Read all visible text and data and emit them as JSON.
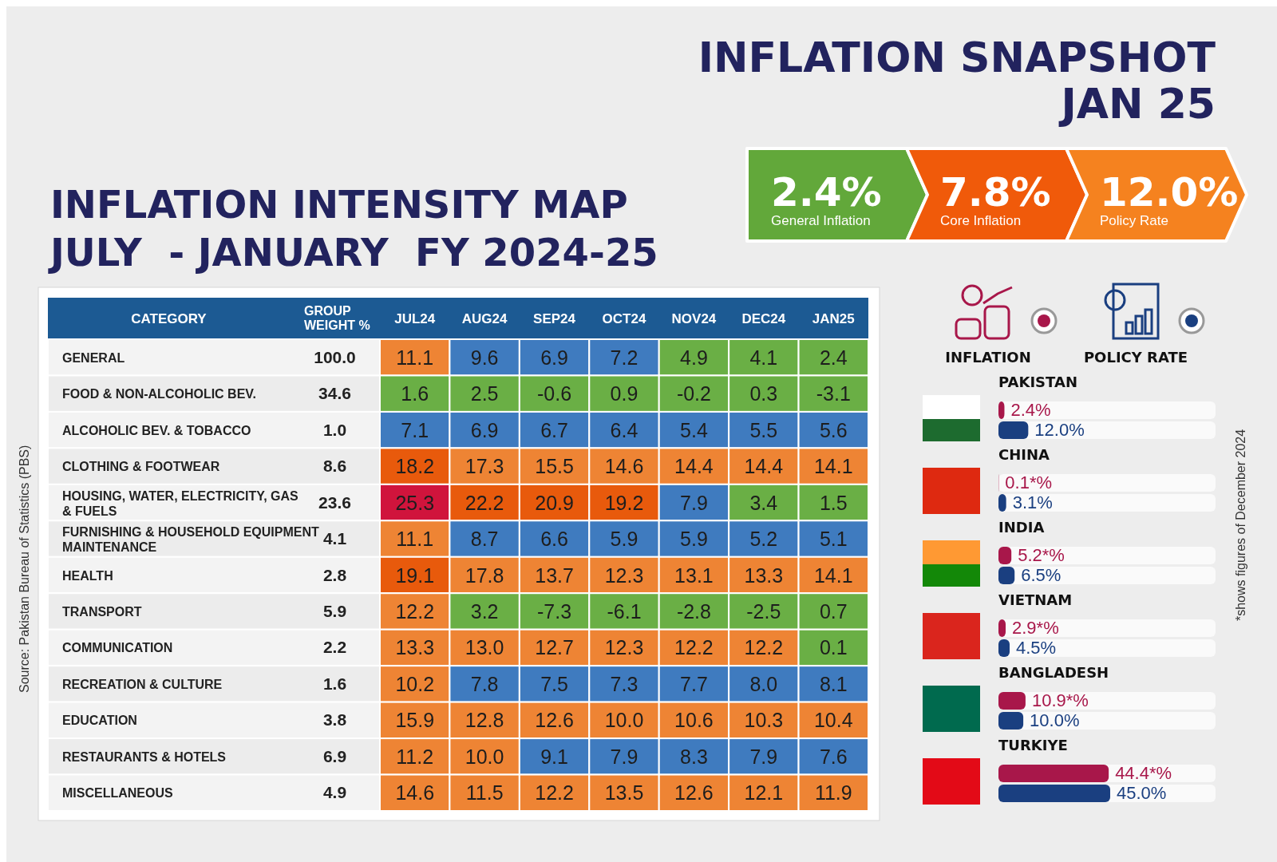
{
  "chart_data": [
    {
      "type": "heatmap",
      "data_labels": true,
      "title": "INFLATION INTENSITY MAP",
      "subtitle": "JULY  - JANUARY  FY 2024-25",
      "ylabel": "CATEGORY",
      "y2label": "GROUP WEIGHT %",
      "categories": [
        "JUL24",
        "AUG24",
        "SEP24",
        "OCT24",
        "NOV24",
        "DEC24",
        "JAN25"
      ],
      "y_categories": [
        "GENERAL",
        "FOOD & NON-ALCOHOLIC BEV.",
        "ALCOHOLIC BEV. & TOBACCO",
        "CLOTHING & FOOTWEAR",
        "HOUSING, WATER, ELECTRICITY, GAS & FUELS",
        "FURNISHING & HOUSEHOLD EQUIPMENT MAINTENANCE",
        "HEALTH",
        "TRANSPORT",
        "COMMUNICATION",
        "RECREATION & CULTURE",
        "EDUCATION",
        "RESTAURANTS & HOTELS",
        "MISCELLANEOUS"
      ],
      "y2_categories": [
        "100.0",
        "34.6",
        "1.0",
        "8.6",
        "23.6",
        "4.1",
        "2.8",
        "5.9",
        "2.2",
        "1.6",
        "3.8",
        "6.9",
        "4.9"
      ],
      "cells": [
        [
          11.1,
          9.6,
          6.9,
          7.2,
          4.9,
          4.1,
          2.4
        ],
        [
          1.6,
          2.5,
          -0.6,
          0.9,
          -0.2,
          0.3,
          -3.1
        ],
        [
          7.1,
          6.9,
          6.7,
          6.4,
          5.4,
          5.5,
          5.6
        ],
        [
          18.2,
          17.3,
          15.5,
          14.6,
          14.4,
          14.4,
          14.1
        ],
        [
          25.3,
          22.2,
          20.9,
          19.2,
          7.9,
          3.4,
          1.5
        ],
        [
          11.1,
          8.7,
          6.6,
          5.9,
          5.9,
          5.2,
          5.1
        ],
        [
          19.1,
          17.8,
          13.7,
          12.3,
          13.1,
          13.3,
          14.1
        ],
        [
          12.2,
          3.2,
          -7.3,
          -6.1,
          -2.8,
          -2.5,
          0.7
        ],
        [
          13.3,
          13.0,
          12.7,
          12.3,
          12.2,
          12.2,
          0.1
        ],
        [
          10.2,
          7.8,
          7.5,
          7.3,
          7.7,
          8.0,
          8.1
        ],
        [
          15.9,
          12.8,
          12.6,
          10.0,
          10.6,
          10.3,
          10.4
        ],
        [
          11.2,
          10.0,
          9.1,
          7.9,
          8.3,
          7.9,
          7.6
        ],
        [
          14.6,
          11.5,
          12.2,
          13.5,
          12.6,
          12.1,
          11.9
        ]
      ],
      "colors": [
        "#6aaf45",
        "#3f7bbf",
        "#ee8434",
        "#e85a0c",
        "#d0143c"
      ],
      "cell_labels": [
        [
          "11.1",
          "9.6",
          "6.9",
          "7.2",
          "4.9",
          "4.1",
          "2.4"
        ],
        [
          "1.6",
          "2.5",
          "-0.6",
          "0.9",
          "-0.2",
          "0.3",
          "-3.1"
        ],
        [
          "7.1",
          "6.9",
          "6.7",
          "6.4",
          "5.4",
          "5.5",
          "5.6"
        ],
        [
          "18.2",
          "17.3",
          "15.5",
          "14.6",
          "14.4",
          "14.4",
          "14.1"
        ],
        [
          "25.3",
          "22.2",
          "20.9",
          "19.2",
          "7.9",
          "3.4",
          "1.5"
        ],
        [
          "11.1",
          "8.7",
          "6.6",
          "5.9",
          "5.9",
          "5.2",
          "5.1"
        ],
        [
          "19.1",
          "17.8",
          "13.7",
          "12.3",
          "13.1",
          "13.3",
          "14.1"
        ],
        [
          "12.2",
          "3.2",
          "-7.3",
          "-6.1",
          "-2.8",
          "-2.5",
          "0.7"
        ],
        [
          "13.3",
          "13.0",
          "12.7",
          "12.3",
          "12.2",
          "12.2",
          "0.1"
        ],
        [
          "10.2",
          "7.8",
          "7.5",
          "7.3",
          "7.7",
          "8.0",
          "8.1"
        ],
        [
          "15.9",
          "12.8",
          "12.6",
          "10.0",
          "10.6",
          "10.3",
          "10.4"
        ],
        [
          "11.2",
          "10.0",
          "9.1",
          "7.9",
          "8.3",
          "7.9",
          "7.6"
        ],
        [
          "14.6",
          "11.5",
          "12.2",
          "13.5",
          "12.6",
          "12.1",
          "11.9"
        ]
      ],
      "annotations": [
        "Source: Pakistan Bureau of Statistics (PBS)"
      ]
    },
    {
      "type": "other",
      "title": "INFLATION SNAPSHOT JAN 25",
      "annotations": [
        "2.4%",
        "General Inflation",
        "7.8%",
        "Core Inflation",
        "12.0%",
        "Policy Rate"
      ],
      "colors": [
        "#62a83a",
        "#f05a0a",
        "#f5821f"
      ]
    },
    {
      "type": "bar",
      "orientation": "horizontal",
      "legend": "top",
      "categories": [
        "PAKISTAN",
        "CHINA",
        "INDIA",
        "VIETNAM",
        "BANGLADESH",
        "TURKIYE"
      ],
      "series": [
        {
          "name": "INFLATION",
          "color": "#a8174a",
          "values": [
            2.4,
            0.1,
            5.2,
            2.9,
            10.9,
            44.4
          ],
          "value_labels": [
            "2.4%",
            "0.1*%",
            "5.2*%",
            "2.9*%",
            "10.9*%",
            "44.4*%"
          ]
        },
        {
          "name": "POLICY RATE",
          "color": "#1a3f80",
          "values": [
            12.0,
            3.1,
            6.5,
            4.5,
            10.0,
            45.0
          ],
          "value_labels": [
            "12.0%",
            "3.1%",
            "6.5%",
            "4.5%",
            "10.0%",
            "45.0%"
          ]
        }
      ],
      "annotations": [
        "*shows figures of December 2024"
      ]
    }
  ]
}
